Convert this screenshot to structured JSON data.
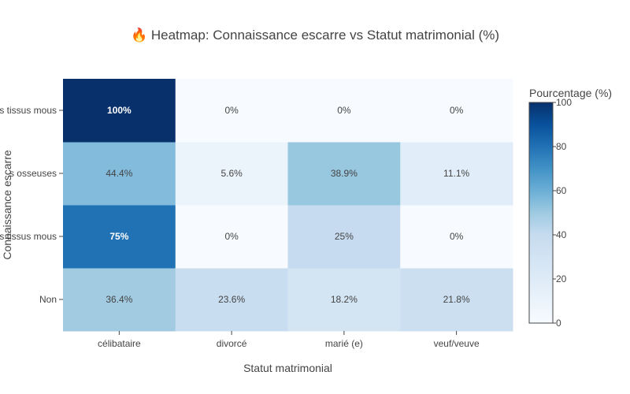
{
  "chart_data": {
    "type": "heatmap",
    "title": "🔥 Heatmap: Connaissance escarre vs Statut matrimonial (%)",
    "xlabel": "Statut matrimonial",
    "ylabel": "Connaissance escarre",
    "x": [
      "célibataire",
      "divorcé",
      "marié (e)",
      "veuf/veuve"
    ],
    "y": [
      "Non",
      "…",
      "…",
      "…"
    ],
    "y_visible_text": [
      "Non",
      "s tissus mous",
      "s osseuses",
      "s tissus mous"
    ],
    "values": [
      [
        36.4,
        23.6,
        18.2,
        21.8
      ],
      [
        75,
        0,
        25,
        0
      ],
      [
        44.4,
        5.6,
        38.9,
        11.1
      ],
      [
        100,
        0,
        0,
        0
      ]
    ],
    "cell_labels": [
      [
        "36.4%",
        "23.6%",
        "18.2%",
        "21.8%"
      ],
      [
        "75%",
        "0%",
        "25%",
        "0%"
      ],
      [
        "44.4%",
        "5.6%",
        "38.9%",
        "11.1%"
      ],
      [
        "100%",
        "0%",
        "0%",
        "0%"
      ]
    ],
    "zlim": [
      0,
      100
    ],
    "colorscale": "Blues",
    "colorbar": {
      "title": "Pourcentage (%)",
      "ticks": [
        0,
        20,
        40,
        60,
        80,
        100
      ]
    },
    "colors": {
      "low": "#f7fbff",
      "high": "#08306b",
      "text_dark": "#444444",
      "text_light": "#ffffff"
    }
  }
}
